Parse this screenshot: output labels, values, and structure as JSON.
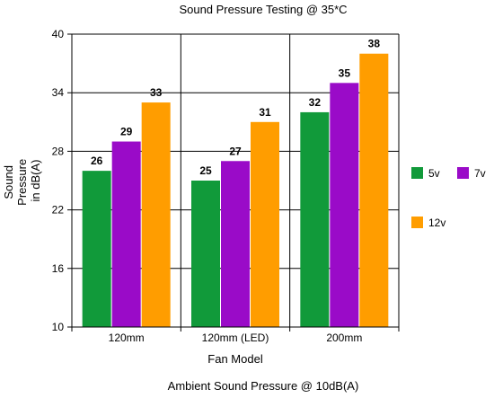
{
  "chart_data": {
    "type": "bar",
    "title": "Sound Pressure Testing @ 35*C",
    "xlabel": "Fan Model",
    "ylabel_lines": [
      "Sound",
      "Pressure",
      "in dB(A)"
    ],
    "footnote": "Ambient Sound Pressure @ 10dB(A)",
    "categories": [
      "120mm",
      "120mm (LED)",
      "200mm"
    ],
    "series": [
      {
        "name": "5v",
        "values": [
          26,
          25,
          32
        ],
        "color": "#119A3A"
      },
      {
        "name": "7v",
        "values": [
          29,
          27,
          35
        ],
        "color": "#9A0BC8"
      },
      {
        "name": "12v",
        "values": [
          33,
          31,
          38
        ],
        "color": "#FF9D00"
      }
    ],
    "ylim": [
      10,
      40
    ],
    "yticks": [
      10,
      16,
      22,
      28,
      34,
      40
    ],
    "grid": true,
    "legend_position": "right"
  }
}
